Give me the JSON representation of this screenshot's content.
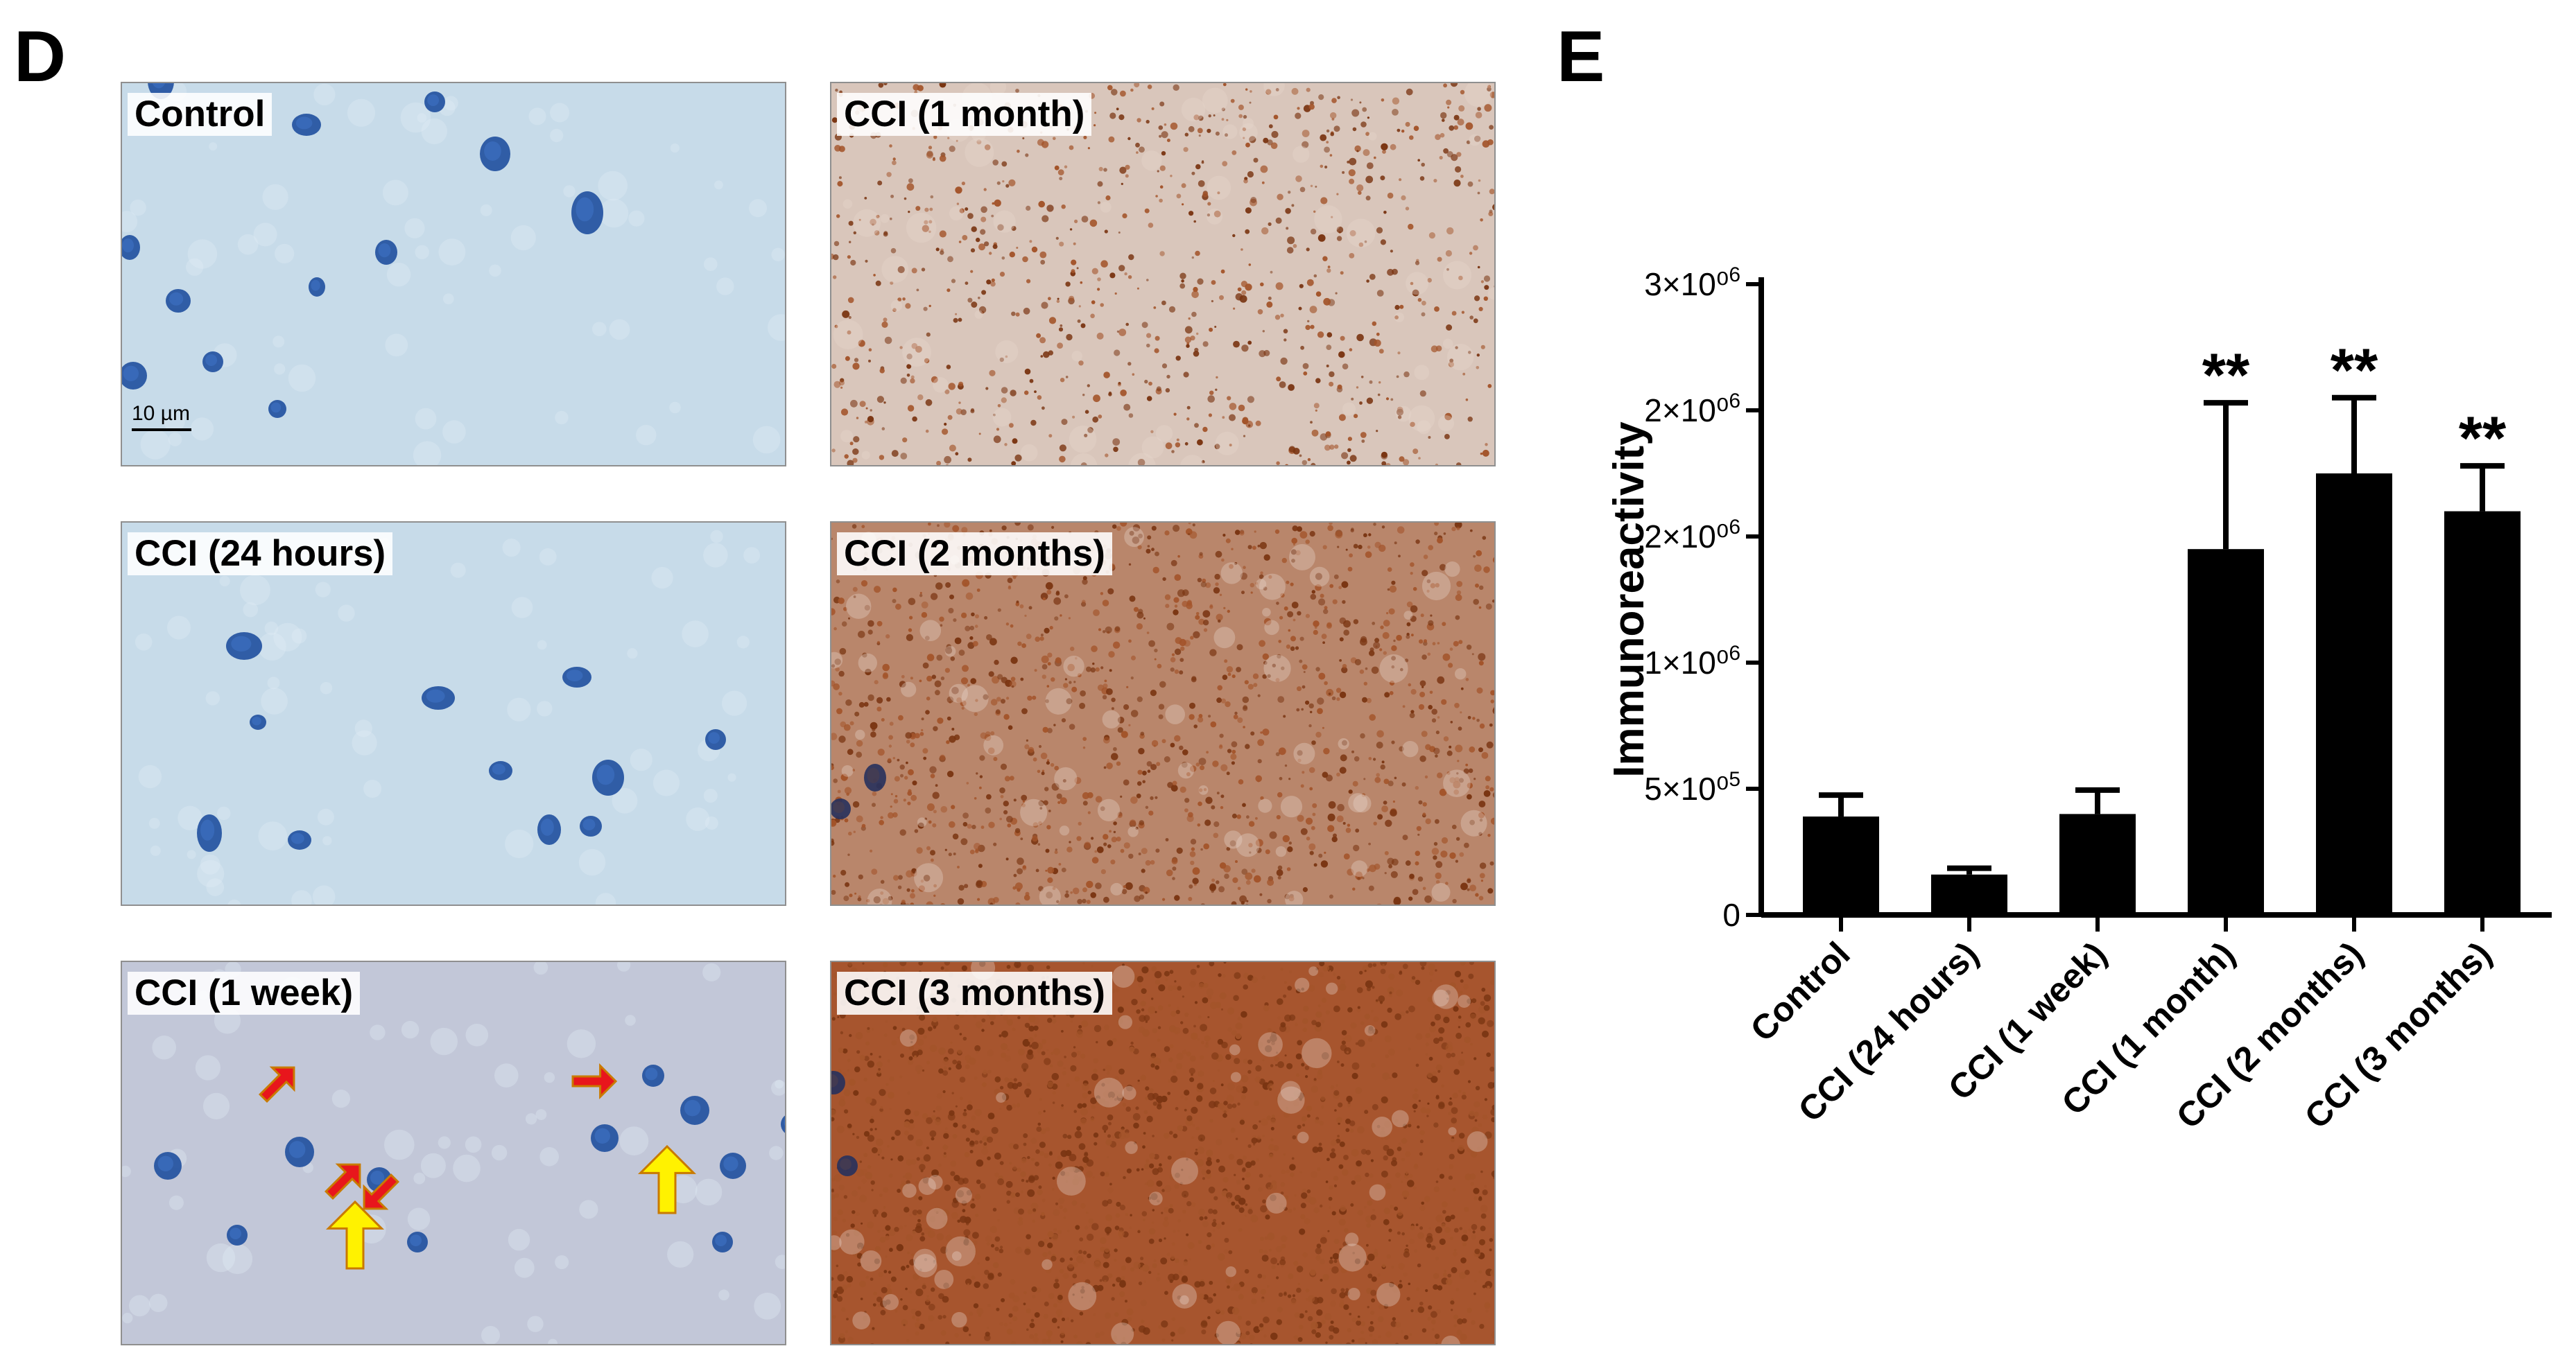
{
  "panel_d": {
    "letter": "D",
    "images": [
      {
        "label": "Control",
        "stain": "blue",
        "scale_bar": "10 µm",
        "nuclei": [
          [
            230,
            115,
            38,
            52
          ],
          [
            440,
            178,
            42,
            32
          ],
          [
            625,
            145,
            30,
            30
          ],
          [
            712,
            220,
            44,
            50
          ],
          [
            845,
            305,
            46,
            62
          ],
          [
            255,
            432,
            36,
            34
          ],
          [
            555,
            362,
            32,
            36
          ],
          [
            190,
            540,
            40,
            40
          ],
          [
            305,
            520,
            30,
            30
          ],
          [
            398,
            588,
            26,
            26
          ],
          [
            455,
            412,
            24,
            28
          ],
          [
            185,
            355,
            30,
            36
          ]
        ],
        "arrows_red": [],
        "arrows_yellow": []
      },
      {
        "label": "CCI (1 month)",
        "stain": "brown-light",
        "nuclei": [
          [
            600,
            150,
            30,
            30
          ],
          [
            835,
            150,
            34,
            30
          ],
          [
            880,
            290,
            34,
            40
          ],
          [
            670,
            520,
            34,
            38
          ],
          [
            730,
            545,
            30,
            30
          ],
          [
            1000,
            275,
            40,
            34
          ],
          [
            1010,
            245,
            26,
            26
          ],
          [
            965,
            235,
            22,
            22
          ]
        ],
        "arrows_red": [
          [
            750,
            625,
            "right"
          ],
          [
            875,
            600,
            "up"
          ],
          [
            875,
            500,
            "down-left"
          ]
        ],
        "arrows_yellow": [
          [
            930,
            240,
            "up-right"
          ],
          [
            700,
            445,
            "down"
          ]
        ]
      },
      {
        "label": "CCI (24 hours)",
        "stain": "blue",
        "nuclei": [
          [
            350,
            930,
            52,
            40
          ],
          [
            630,
            1005,
            48,
            34
          ],
          [
            830,
            975,
            42,
            30
          ],
          [
            875,
            1120,
            46,
            52
          ],
          [
            300,
            1200,
            36,
            54
          ],
          [
            430,
            1210,
            34,
            28
          ],
          [
            790,
            1195,
            34,
            44
          ],
          [
            850,
            1190,
            32,
            30
          ],
          [
            370,
            1040,
            24,
            22
          ],
          [
            720,
            1110,
            34,
            28
          ],
          [
            1030,
            1065,
            30,
            30
          ]
        ],
        "arrows_red": [],
        "arrows_yellow": []
      },
      {
        "label": "CCI (2 months)",
        "stain": "brown",
        "nuclei": [
          [
            640,
            1030,
            38,
            34
          ],
          [
            700,
            1120,
            32,
            28
          ],
          [
            820,
            1110,
            40,
            36
          ],
          [
            910,
            1085,
            34,
            34
          ],
          [
            975,
            1130,
            36,
            36
          ],
          [
            1060,
            1040,
            30,
            30
          ],
          [
            1100,
            1150,
            30,
            30
          ],
          [
            865,
            1240,
            30,
            36
          ],
          [
            960,
            1270,
            30,
            30
          ],
          [
            1070,
            1235,
            30,
            36
          ],
          [
            1260,
            1120,
            32,
            40
          ],
          [
            1210,
            1165,
            30,
            30
          ]
        ],
        "arrows_red": [
          [
            910,
            1145,
            "down-left"
          ],
          [
            940,
            1215,
            "down-left"
          ],
          [
            1050,
            1165,
            "down-left"
          ]
        ],
        "arrows_yellow": [
          [
            705,
            1225,
            "right"
          ],
          [
            1030,
            1240,
            "left"
          ]
        ]
      },
      {
        "label": "CCI (1 week)",
        "stain": "blue-purple",
        "nuclei": [
          [
            240,
            1680,
            40,
            40
          ],
          [
            430,
            1660,
            42,
            44
          ],
          [
            870,
            1640,
            40,
            40
          ],
          [
            1000,
            1600,
            42,
            42
          ],
          [
            1055,
            1680,
            38,
            38
          ],
          [
            1140,
            1620,
            32,
            32
          ],
          [
            545,
            1700,
            36,
            36
          ],
          [
            940,
            1550,
            32,
            32
          ],
          [
            600,
            1790,
            30,
            30
          ],
          [
            340,
            1780,
            30,
            30
          ],
          [
            1040,
            1790,
            30,
            30
          ],
          [
            1190,
            1525,
            30,
            30
          ]
        ],
        "arrows_red": [
          [
            400,
            1560,
            "up-right"
          ],
          [
            495,
            1700,
            "up-right"
          ],
          [
            545,
            1720,
            "down-left"
          ],
          [
            855,
            1558,
            "right"
          ]
        ],
        "arrows_yellow": [
          [
            510,
            1780,
            "up"
          ],
          [
            960,
            1700,
            "up"
          ]
        ]
      },
      {
        "label": "CCI (3 months)",
        "stain": "brown-dense",
        "nuclei": [
          [
            600,
            1555,
            40,
            40
          ],
          [
            600,
            1720,
            34,
            34
          ],
          [
            640,
            1780,
            30,
            30
          ],
          [
            690,
            1700,
            32,
            32
          ],
          [
            835,
            1680,
            40,
            40
          ],
          [
            940,
            1600,
            40,
            40
          ],
          [
            1020,
            1640,
            36,
            36
          ],
          [
            1000,
            1790,
            30,
            30
          ],
          [
            1080,
            1720,
            30,
            30
          ],
          [
            1200,
            1560,
            34,
            34
          ],
          [
            1220,
            1680,
            30,
            30
          ],
          [
            720,
            1820,
            28,
            28
          ]
        ],
        "arrows_red": [
          [
            640,
            1595,
            "down-left"
          ],
          [
            680,
            1665,
            "down-left"
          ],
          [
            695,
            1760,
            "up-left"
          ]
        ],
        "arrows_yellow": [
          [
            845,
            1780,
            "right"
          ]
        ]
      }
    ],
    "colors": {
      "red_arrow": "#e8161c",
      "yellow_arrow": "#fff200",
      "arrow_outline": "#c97a00"
    }
  },
  "panel_e": {
    "letter": "E"
  },
  "chart_data": {
    "type": "bar",
    "categories": [
      "Control",
      "CCI (24 hours)",
      "CCI (1 week)",
      "CCI (1 month)",
      "CCI (2 months)",
      "CCI (3 months)"
    ],
    "values": [
      390000,
      160000,
      400000,
      1450000,
      1750000,
      1600000
    ],
    "errors": [
      85000,
      25000,
      95000,
      580000,
      300000,
      180000
    ],
    "significance": [
      "",
      "",
      "",
      "**",
      "**",
      "**"
    ],
    "ylabel": "Immunoreactivity",
    "xlabel": "",
    "ylim": [
      0,
      2500000
    ],
    "yticks": [
      0,
      500000,
      1000000,
      1500000,
      2000000,
      2500000
    ],
    "ytick_labels": [
      {
        "base": "0",
        "exp": ""
      },
      {
        "base": "5×10⁰",
        "exp": "5"
      },
      {
        "base": "1×10⁰",
        "exp": "6"
      },
      {
        "base": "2×10⁰",
        "exp": "6"
      },
      {
        "base": "2×10⁰",
        "exp": "6"
      },
      {
        "base": "3×10⁰",
        "exp": "6"
      }
    ],
    "bar_color": "#000000",
    "grid": false
  }
}
